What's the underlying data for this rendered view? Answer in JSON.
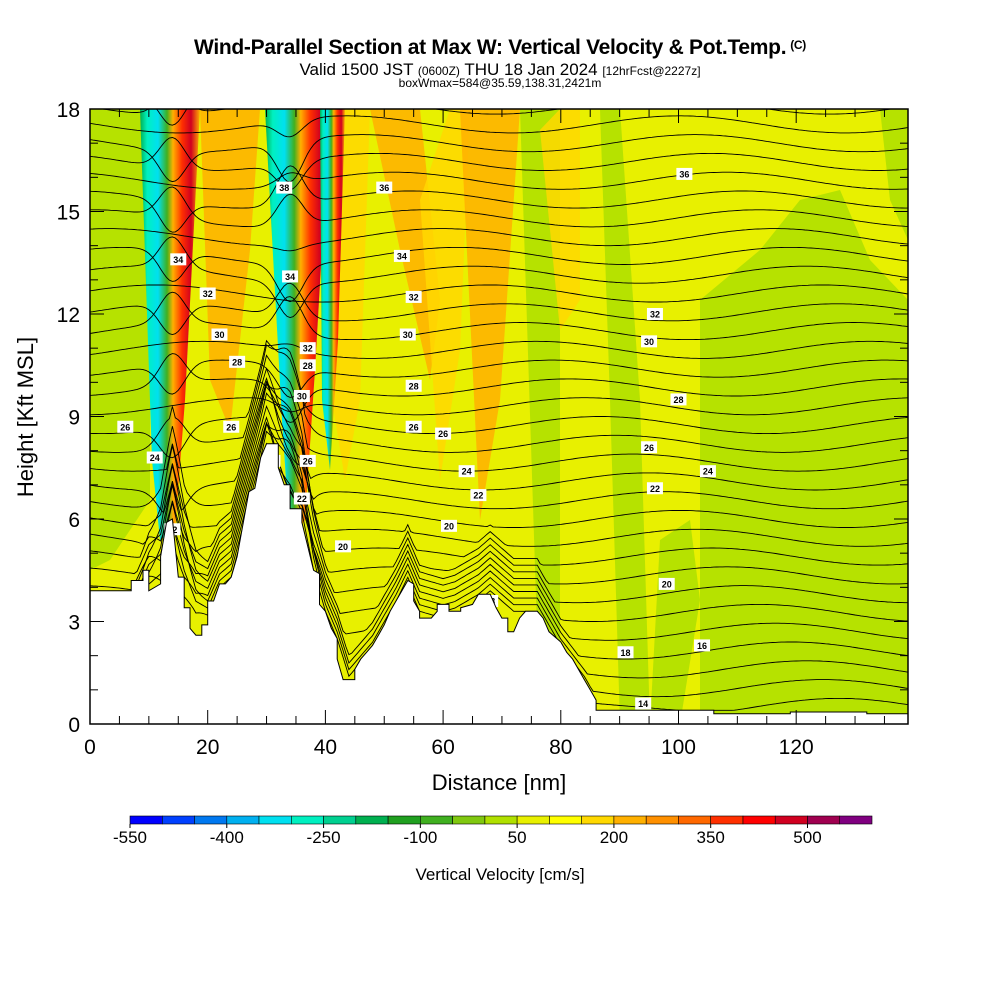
{
  "title": {
    "line1": "Wind-Parallel Section at Max W: Vertical Velocity & Pot.Temp.",
    "copyright": "(C)",
    "line2_pre": "Valid 1500 JST ",
    "line2_zulu": "(0600Z)",
    "line2_mid": " THU 18 Jan 2024 ",
    "line2_fcst": "[12hrFcst@2227z]",
    "line3": "boxWmax=584@35.59,138.31,2421m"
  },
  "chart_data": {
    "type": "heatmap",
    "xlabel": "Distance [nm]",
    "ylabel": "Height [Kft MSL]",
    "xlim": [
      0,
      139
    ],
    "ylim": [
      0,
      18
    ],
    "x_ticks": [
      0,
      20,
      40,
      60,
      80,
      100,
      120
    ],
    "y_ticks": [
      0,
      3,
      6,
      9,
      12,
      15,
      18
    ],
    "colorbar": {
      "label": "Vertical Velocity [cm/s]",
      "tick_labels": [
        "-550",
        "-400",
        "-250",
        "-100",
        "50",
        "200",
        "350",
        "500"
      ],
      "tick_values": [
        -550,
        -400,
        -250,
        -100,
        50,
        200,
        350,
        500
      ],
      "bins": [
        -550,
        -500,
        -450,
        -400,
        -350,
        -300,
        -250,
        -200,
        -150,
        -100,
        -50,
        0,
        50,
        100,
        150,
        200,
        250,
        300,
        350,
        400,
        450,
        500,
        550,
        600
      ],
      "colors": [
        "#0000ff",
        "#0040ff",
        "#0078f0",
        "#00b0f0",
        "#00e0f0",
        "#00f0c0",
        "#00d090",
        "#00b050",
        "#20a020",
        "#40b020",
        "#80c810",
        "#b0e000",
        "#e8f000",
        "#ffff00",
        "#ffd800",
        "#ffb000",
        "#ff9000",
        "#ff6800",
        "#ff3000",
        "#ff0000",
        "#d00020",
        "#a00050",
        "#800080"
      ]
    },
    "theta_contours": {
      "labels": [
        "14",
        "16",
        "18",
        "18",
        "20",
        "20",
        "20",
        "22",
        "22",
        "22",
        "22",
        "24",
        "24",
        "24",
        "24",
        "26",
        "26",
        "26",
        "26",
        "26",
        "26",
        "28",
        "28",
        "28",
        "28",
        "30",
        "30",
        "30",
        "30",
        "32",
        "32",
        "32",
        "32",
        "34",
        "34",
        "34",
        "36",
        "36",
        "38"
      ]
    }
  }
}
